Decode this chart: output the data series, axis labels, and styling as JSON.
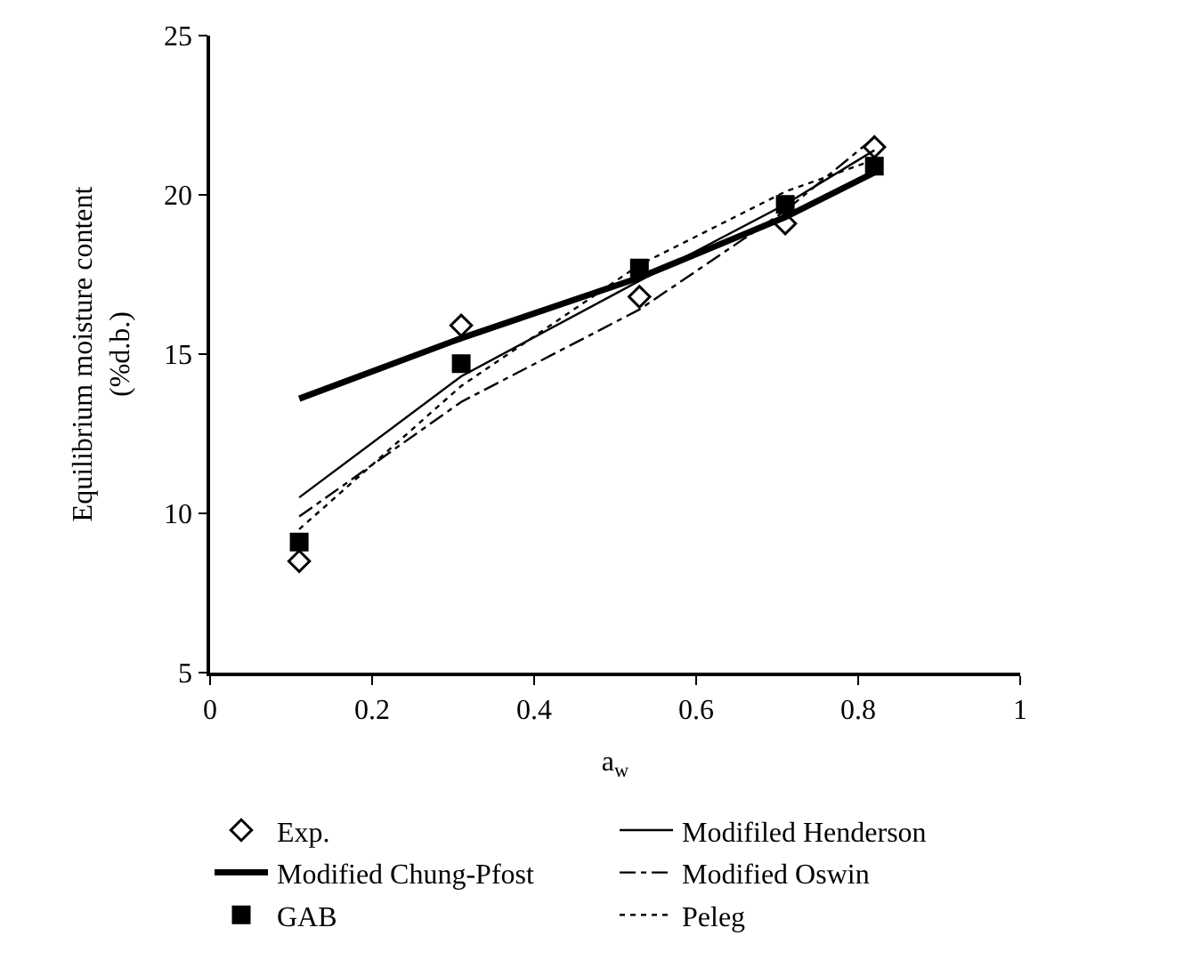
{
  "chart_data": {
    "type": "line",
    "xlabel": "a$_{w}$",
    "ylabel": "Equilibrium moisture content\n(%d.b.)",
    "x": [
      0.11,
      0.31,
      0.53,
      0.71,
      0.82
    ],
    "series": [
      {
        "name": "Exp.",
        "type": "scatter",
        "marker": "diamond-open",
        "color": "#000000",
        "values": [
          8.5,
          15.9,
          16.8,
          19.1,
          21.5
        ]
      },
      {
        "name": "Modifiled Henderson",
        "color": "#000000",
        "line_style": "solid",
        "values": [
          10.5,
          14.3,
          17.3,
          19.7,
          21.4
        ]
      },
      {
        "name": "Modified Chung-Pfost",
        "color": "#000000",
        "line_style": "solid",
        "values": [
          13.6,
          15.5,
          17.4,
          19.3,
          20.7
        ]
      },
      {
        "name": "Modified Oswin",
        "color": "#000000",
        "line_style": "dashdot",
        "values": [
          9.9,
          13.5,
          16.4,
          19.5,
          21.8
        ]
      },
      {
        "name": "GAB",
        "type": "scatter",
        "marker": "square",
        "color": "#000000",
        "values": [
          9.1,
          14.7,
          17.7,
          19.7,
          20.9
        ]
      },
      {
        "name": "Peleg",
        "color": "#000000",
        "line_style": "dot",
        "values": [
          9.5,
          14.0,
          17.8,
          20.1,
          21.1
        ]
      }
    ],
    "xlim": [
      0,
      1
    ],
    "xticks": [
      0,
      0.2,
      0.4,
      0.6,
      0.8,
      1
    ],
    "ylim": [
      5,
      25
    ],
    "yticks": [
      5,
      10,
      15,
      20,
      25
    ],
    "legend": "bottom"
  }
}
